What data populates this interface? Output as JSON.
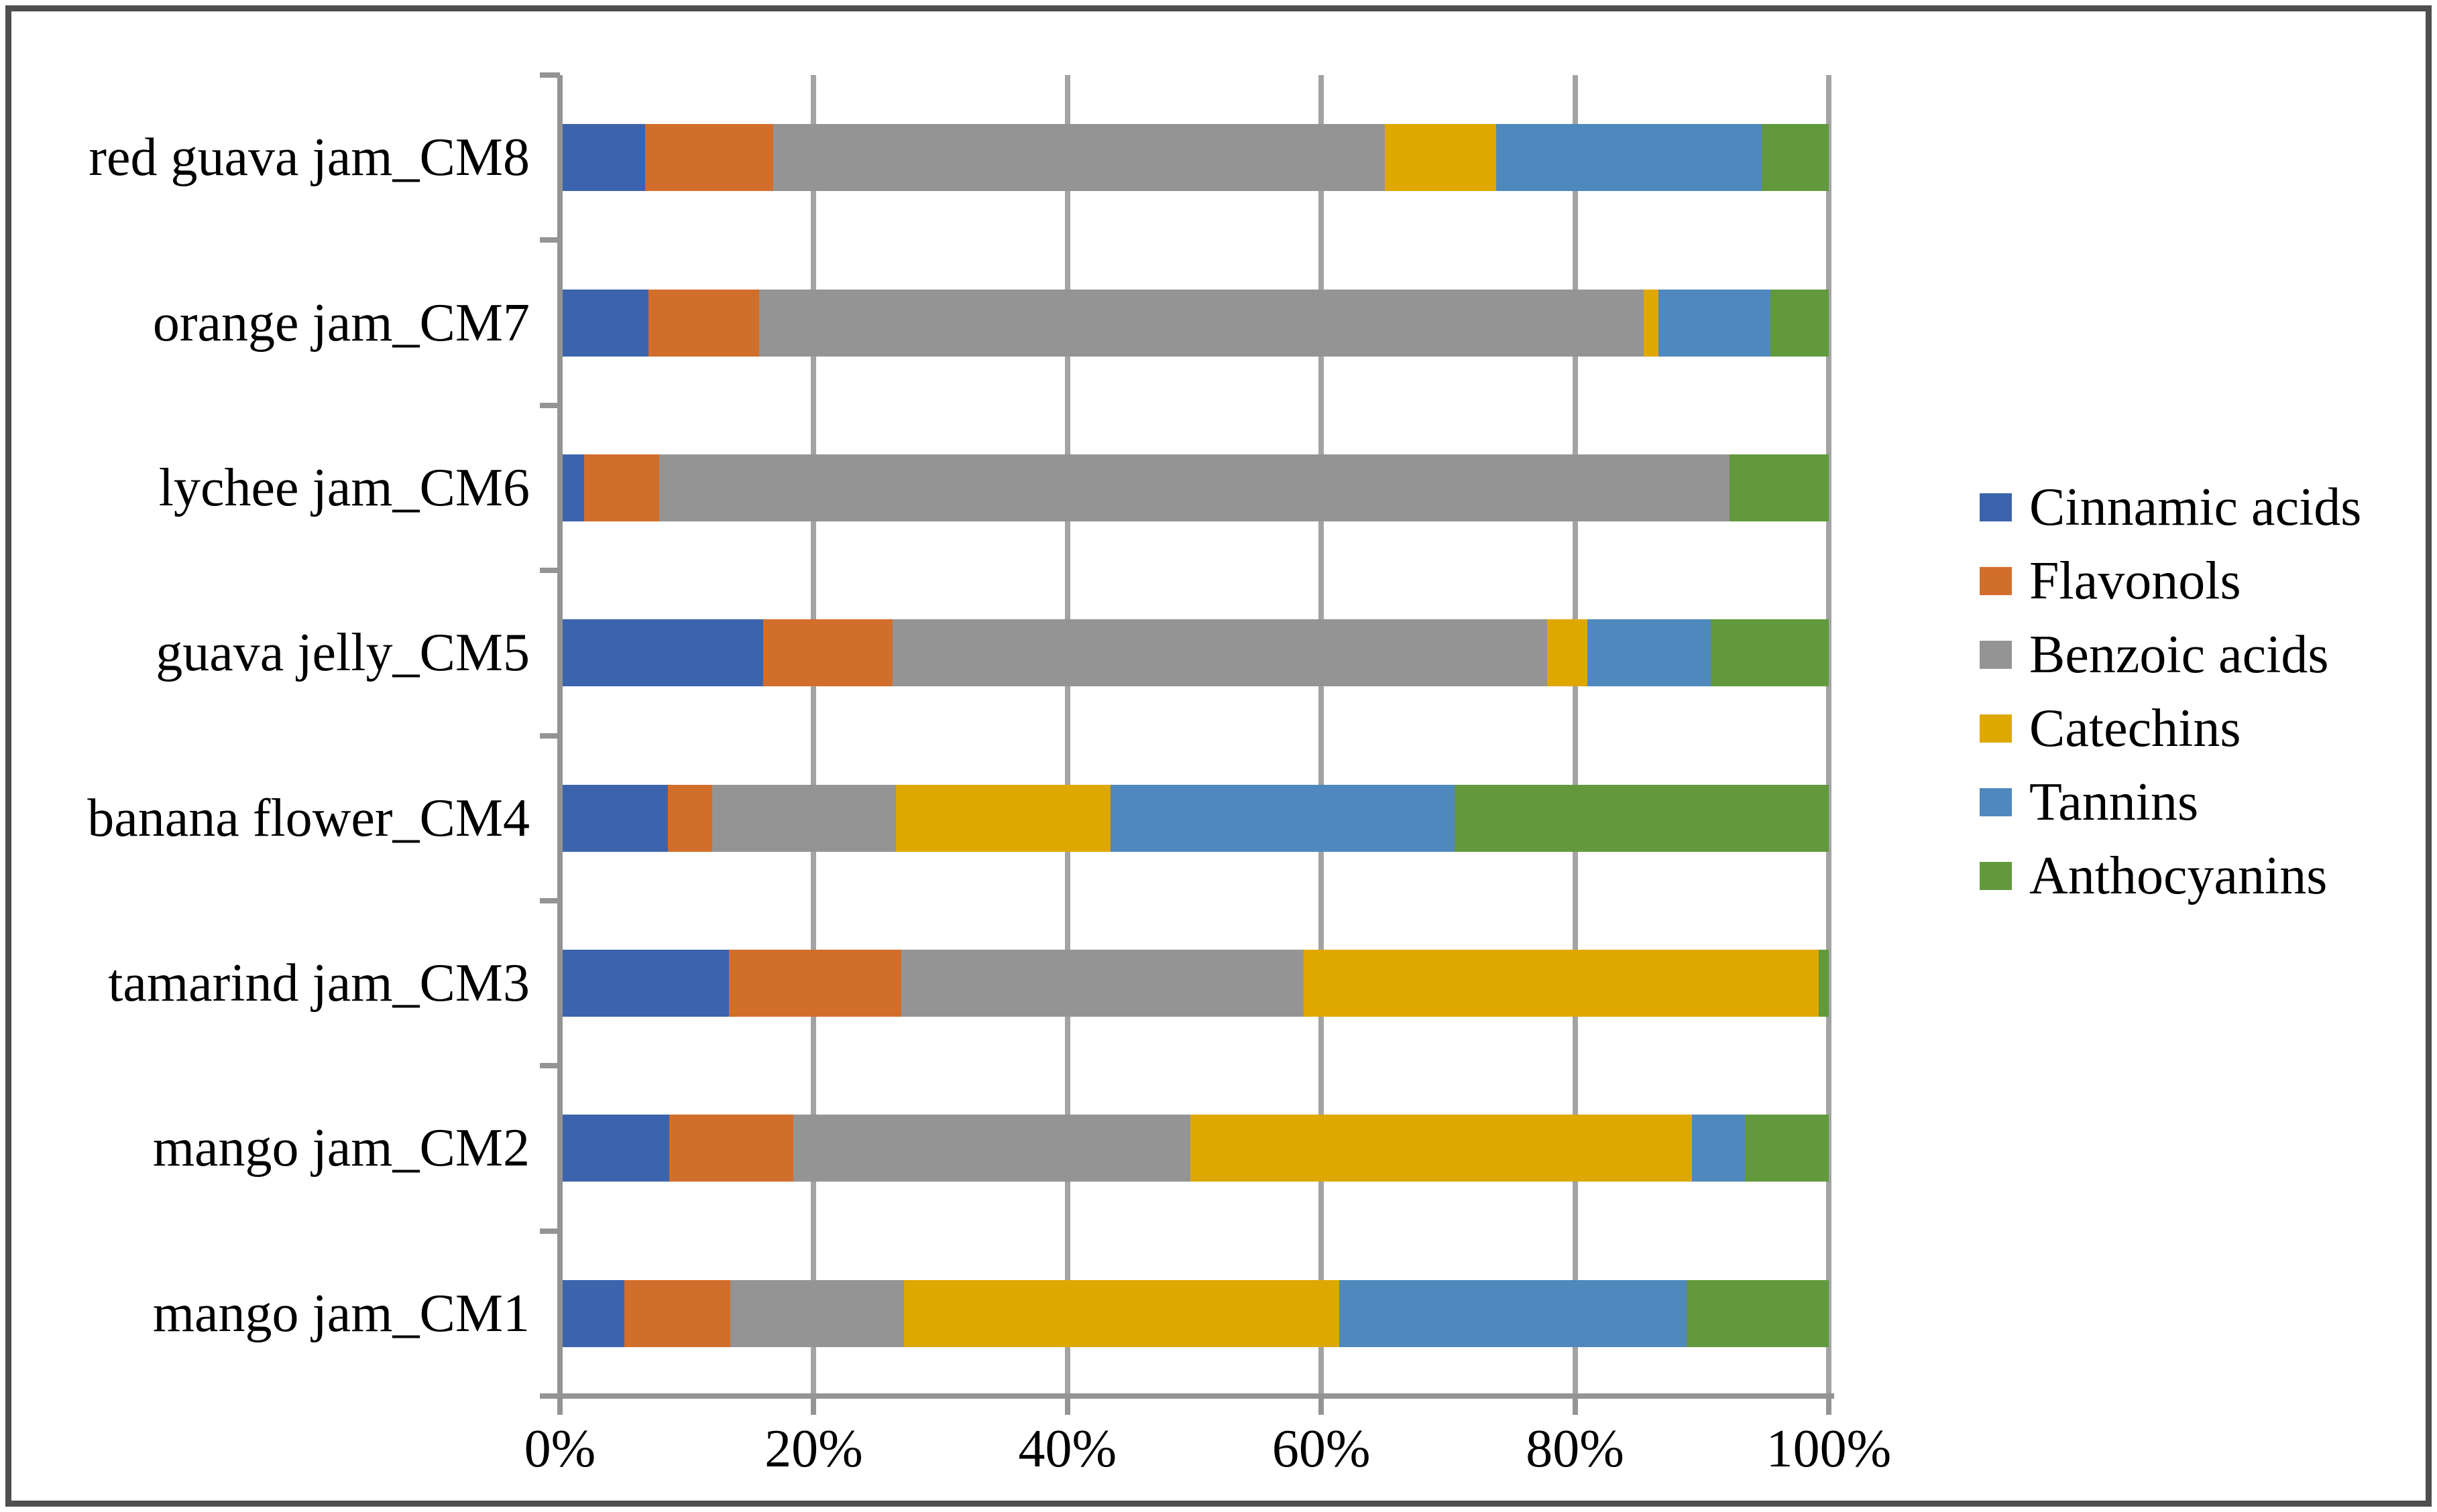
{
  "figure": {
    "background": "#ffffff",
    "border_color": "#4e4e4e",
    "axis_color": "#949494",
    "gridline_color": "#a3a3a3"
  },
  "chart_data": {
    "type": "bar",
    "orientation": "horizontal",
    "stacked": true,
    "normalized_to_100_percent": true,
    "title": "",
    "xlabel": "",
    "ylabel": "",
    "categories_top_to_bottom": [
      "red guava jam_CM8",
      "orange jam_CM7",
      "lychee jam_CM6",
      "guava jelly_CM5",
      "banana flower_CM4",
      "tamarind jam_CM3",
      "mango jam_CM2",
      "mango jam_CM1"
    ],
    "series": [
      {
        "name": "Cinnamic acids",
        "color": "#3c64ac",
        "values": [
          6.7,
          7.0,
          1.9,
          16.0,
          8.5,
          13.3,
          8.6,
          5.1
        ]
      },
      {
        "name": "Flavonols",
        "color": "#d26e2b",
        "values": [
          10.1,
          8.7,
          5.9,
          10.2,
          3.5,
          13.6,
          9.8,
          8.3
        ]
      },
      {
        "name": "Benzoic acids",
        "color": "#949494",
        "values": [
          48.2,
          69.7,
          84.4,
          51.6,
          14.5,
          31.7,
          31.3,
          13.7
        ]
      },
      {
        "name": "Catechins",
        "color": "#dfa800",
        "values": [
          8.8,
          1.2,
          0,
          3.2,
          16.9,
          40.6,
          39.5,
          34.3
        ]
      },
      {
        "name": "Tannins",
        "color": "#4f88bc",
        "values": [
          20.9,
          8.8,
          0,
          9.7,
          27.1,
          0,
          4.2,
          27.4
        ]
      },
      {
        "name": "Anthocyanins",
        "color": "#63993d",
        "values": [
          5.3,
          4.6,
          7.8,
          9.3,
          29.5,
          0.8,
          6.6,
          11.2
        ]
      }
    ],
    "x_axis": {
      "min": 0,
      "max": 100,
      "tick_labels": [
        "0%",
        "20%",
        "40%",
        "60%",
        "80%",
        "100%"
      ],
      "grid": true
    },
    "legend": {
      "position": "right",
      "entries": [
        "Cinnamic acids",
        "Flavonols",
        "Benzoic acids",
        "Catechins",
        "Tannins",
        "Anthocyanins"
      ]
    }
  }
}
